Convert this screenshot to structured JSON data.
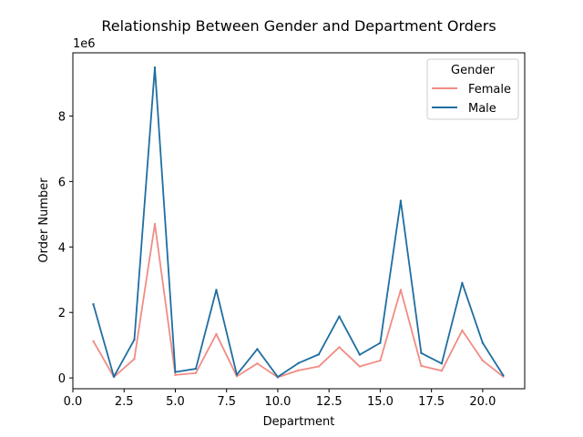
{
  "chart_data": {
    "type": "line",
    "title": "Relationship Between Gender and Department Orders",
    "xlabel": "Department",
    "ylabel": "Order Number",
    "y_offset_label": "1e6",
    "xlim": [
      0,
      22.05
    ],
    "ylim": [
      -0.33,
      9.93
    ],
    "x_ticks": [
      0.0,
      2.5,
      5.0,
      7.5,
      10.0,
      12.5,
      15.0,
      17.5,
      20.0
    ],
    "x_tick_labels": [
      "0.0",
      "2.5",
      "5.0",
      "7.5",
      "10.0",
      "12.5",
      "15.0",
      "17.5",
      "20.0"
    ],
    "y_ticks": [
      0,
      2,
      4,
      6,
      8
    ],
    "y_tick_labels": [
      "0",
      "2",
      "4",
      "6",
      "8"
    ],
    "grid": false,
    "legend": {
      "title": "Gender",
      "placement": "top-right"
    },
    "x": [
      1,
      2,
      3,
      4,
      5,
      6,
      7,
      8,
      9,
      10,
      11,
      12,
      13,
      14,
      15,
      16,
      17,
      18,
      19,
      20,
      21
    ],
    "series": [
      {
        "name": "Female",
        "color": "#f08c84",
        "values": [
          1.12,
          0.03,
          0.58,
          4.7,
          0.09,
          0.15,
          1.34,
          0.05,
          0.44,
          0.02,
          0.23,
          0.35,
          0.94,
          0.35,
          0.53,
          2.69,
          0.37,
          0.22,
          1.45,
          0.53,
          0.04
        ]
      },
      {
        "name": "Male",
        "color": "#1f6ea0",
        "values": [
          2.25,
          0.04,
          1.17,
          9.48,
          0.18,
          0.28,
          2.69,
          0.1,
          0.88,
          0.03,
          0.45,
          0.72,
          1.88,
          0.71,
          1.07,
          5.41,
          0.76,
          0.44,
          2.9,
          1.07,
          0.08
        ]
      }
    ]
  }
}
